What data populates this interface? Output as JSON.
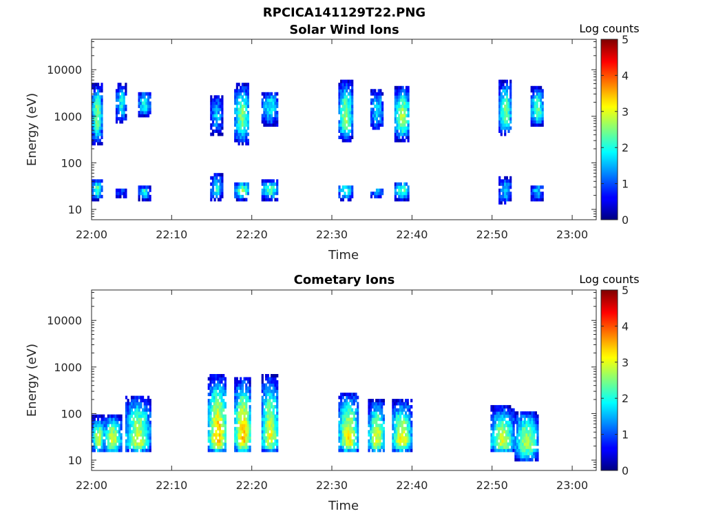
{
  "chart_data": [
    {
      "type": "heatmap",
      "figure_title": "RPCICA141129T22.PNG",
      "title": "Solar Wind Ions",
      "xlabel": "Time",
      "ylabel": "Energy (eV)",
      "x_ticks": [
        "22:00",
        "22:10",
        "22:20",
        "22:30",
        "22:40",
        "22:50",
        "23:00"
      ],
      "xlim": [
        "22:00",
        "23:03"
      ],
      "y_ticks": [
        "10",
        "100",
        "1000",
        "10000"
      ],
      "ylim": [
        6,
        45000
      ],
      "y_scale": "log",
      "colorbar": {
        "label": "Log counts",
        "range": [
          0,
          5
        ],
        "ticks": [
          "0",
          "1",
          "2",
          "3",
          "4",
          "5"
        ],
        "colormap": "jet"
      },
      "bursts": [
        {
          "start_min": 0.0,
          "end_min": 1.2,
          "components": [
            {
              "e_lo": 250,
              "e_hi": 5000,
              "center": 1000,
              "peak": 2.6
            },
            {
              "e_lo": 16,
              "e_hi": 45,
              "center": 27,
              "peak": 2.3
            }
          ]
        },
        {
          "start_min": 3.0,
          "end_min": 4.2,
          "components": [
            {
              "e_lo": 700,
              "e_hi": 5000,
              "center": 2000,
              "peak": 1.9
            },
            {
              "e_lo": 18,
              "e_hi": 30,
              "center": 25,
              "peak": 1.0
            }
          ]
        },
        {
          "start_min": 5.8,
          "end_min": 7.2,
          "components": [
            {
              "e_lo": 1000,
              "e_hi": 3500,
              "center": 1800,
              "peak": 2.0
            },
            {
              "e_lo": 16,
              "e_hi": 32,
              "center": 25,
              "peak": 2.0
            }
          ]
        },
        {
          "start_min": 14.8,
          "end_min": 16.2,
          "components": [
            {
              "e_lo": 400,
              "e_hi": 3000,
              "center": 1000,
              "peak": 1.6
            },
            {
              "e_lo": 16,
              "e_hi": 60,
              "center": 28,
              "peak": 2.0
            }
          ]
        },
        {
          "start_min": 17.8,
          "end_min": 19.6,
          "components": [
            {
              "e_lo": 250,
              "e_hi": 5000,
              "center": 1000,
              "peak": 2.5
            },
            {
              "e_lo": 16,
              "e_hi": 40,
              "center": 26,
              "peak": 2.5
            }
          ]
        },
        {
          "start_min": 21.2,
          "end_min": 23.2,
          "components": [
            {
              "e_lo": 600,
              "e_hi": 3500,
              "center": 1700,
              "peak": 1.9
            },
            {
              "e_lo": 16,
              "e_hi": 45,
              "center": 26,
              "peak": 2.2
            }
          ]
        },
        {
          "start_min": 30.8,
          "end_min": 32.5,
          "components": [
            {
              "e_lo": 300,
              "e_hi": 6000,
              "center": 900,
              "peak": 2.6
            },
            {
              "e_lo": 16,
              "e_hi": 35,
              "center": 26,
              "peak": 2.2
            }
          ]
        },
        {
          "start_min": 34.8,
          "end_min": 36.3,
          "components": [
            {
              "e_lo": 500,
              "e_hi": 4000,
              "center": 1300,
              "peak": 1.8
            },
            {
              "e_lo": 18,
              "e_hi": 30,
              "center": 25,
              "peak": 1.5
            }
          ]
        },
        {
          "start_min": 37.8,
          "end_min": 39.6,
          "components": [
            {
              "e_lo": 300,
              "e_hi": 4500,
              "center": 1000,
              "peak": 2.7
            },
            {
              "e_lo": 16,
              "e_hi": 40,
              "center": 26,
              "peak": 2.3
            }
          ]
        },
        {
          "start_min": 50.8,
          "end_min": 52.3,
          "components": [
            {
              "e_lo": 400,
              "e_hi": 6000,
              "center": 1100,
              "peak": 2.5
            },
            {
              "e_lo": 13,
              "e_hi": 50,
              "center": 26,
              "peak": 1.6
            }
          ]
        },
        {
          "start_min": 54.8,
          "end_min": 56.3,
          "components": [
            {
              "e_lo": 600,
              "e_hi": 4500,
              "center": 1400,
              "peak": 2.4
            },
            {
              "e_lo": 15,
              "e_hi": 35,
              "center": 26,
              "peak": 1.6
            }
          ]
        }
      ]
    },
    {
      "type": "heatmap",
      "title": "Cometary Ions",
      "xlabel": "Time",
      "ylabel": "Energy (eV)",
      "x_ticks": [
        "22:00",
        "22:10",
        "22:20",
        "22:30",
        "22:40",
        "22:50",
        "23:00"
      ],
      "xlim": [
        "22:00",
        "23:03"
      ],
      "y_ticks": [
        "10",
        "100",
        "1000",
        "10000"
      ],
      "ylim": [
        6,
        45000
      ],
      "y_scale": "log",
      "colorbar": {
        "label": "Log counts",
        "range": [
          0,
          5
        ],
        "ticks": [
          "0",
          "1",
          "2",
          "3",
          "4",
          "5"
        ],
        "colormap": "jet"
      },
      "bursts": [
        {
          "start_min": 0.0,
          "end_min": 1.5,
          "components": [
            {
              "e_lo": 14,
              "e_hi": 90,
              "center": 28,
              "peak": 2.8
            }
          ]
        },
        {
          "start_min": 1.5,
          "end_min": 3.6,
          "components": [
            {
              "e_lo": 14,
              "e_hi": 100,
              "center": 26,
              "peak": 2.9
            }
          ]
        },
        {
          "start_min": 4.2,
          "end_min": 7.2,
          "components": [
            {
              "e_lo": 14,
              "e_hi": 250,
              "center": 25,
              "peak": 2.9
            }
          ]
        },
        {
          "start_min": 14.5,
          "end_min": 16.8,
          "components": [
            {
              "e_lo": 14,
              "e_hi": 700,
              "center": 28,
              "peak": 3.4
            }
          ]
        },
        {
          "start_min": 17.8,
          "end_min": 19.8,
          "components": [
            {
              "e_lo": 14,
              "e_hi": 600,
              "center": 28,
              "peak": 3.5
            }
          ]
        },
        {
          "start_min": 21.2,
          "end_min": 23.2,
          "components": [
            {
              "e_lo": 14,
              "e_hi": 700,
              "center": 28,
              "peak": 3.0
            }
          ]
        },
        {
          "start_min": 30.8,
          "end_min": 33.2,
          "components": [
            {
              "e_lo": 14,
              "e_hi": 300,
              "center": 26,
              "peak": 3.1
            }
          ]
        },
        {
          "start_min": 34.5,
          "end_min": 36.5,
          "components": [
            {
              "e_lo": 14,
              "e_hi": 200,
              "center": 26,
              "peak": 3.0
            }
          ]
        },
        {
          "start_min": 37.5,
          "end_min": 39.8,
          "components": [
            {
              "e_lo": 14,
              "e_hi": 200,
              "center": 26,
              "peak": 3.1
            }
          ]
        },
        {
          "start_min": 49.8,
          "end_min": 52.6,
          "components": [
            {
              "e_lo": 14,
              "e_hi": 150,
              "center": 24,
              "peak": 2.9
            }
          ]
        },
        {
          "start_min": 52.8,
          "end_min": 55.6,
          "components": [
            {
              "e_lo": 9,
              "e_hi": 120,
              "center": 24,
              "peak": 2.7
            }
          ]
        }
      ]
    }
  ]
}
